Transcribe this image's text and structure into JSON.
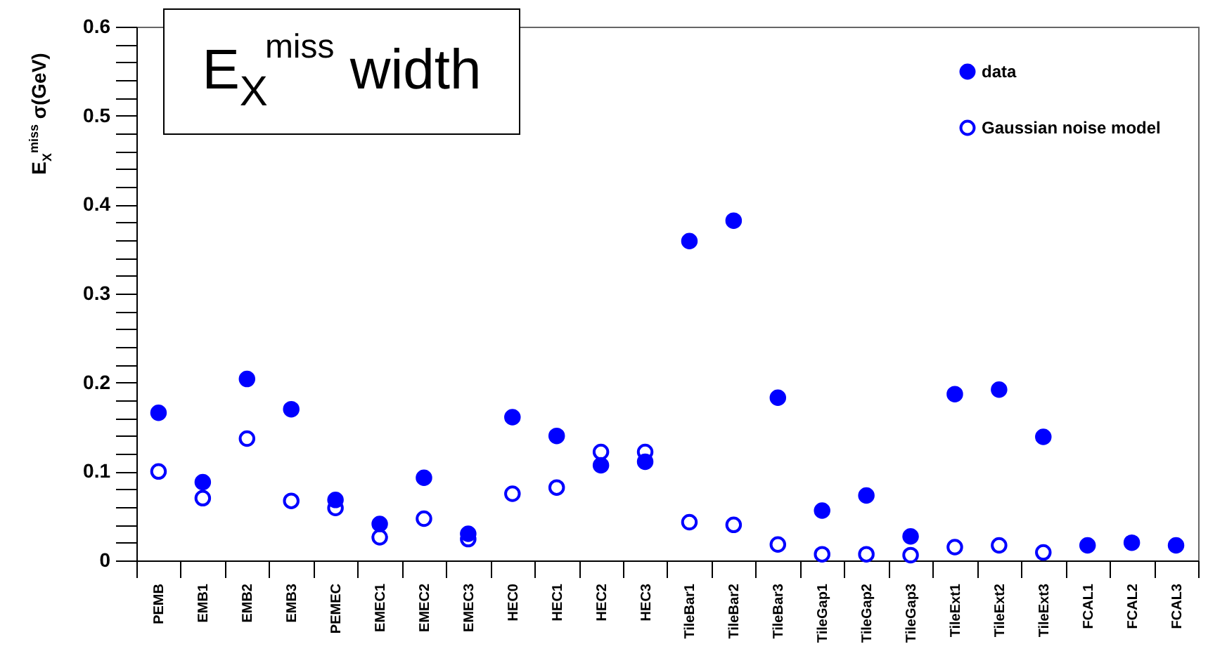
{
  "chart_data": {
    "type": "scatter",
    "title": "E$_{X}$$^{miss}$ width",
    "ylabel": "E$_{X}$$^{miss}$ σ(GeV)",
    "categories": [
      "PEMB",
      "EMB1",
      "EMB2",
      "EMB3",
      "PEMEC",
      "EMEC1",
      "EMEC2",
      "EMEC3",
      "HEC0",
      "HEC1",
      "HEC2",
      "HEC3",
      "TileBar1",
      "TileBar2",
      "TileBar3",
      "TileGap1",
      "TileGap2",
      "TileGap3",
      "TileExt1",
      "TileExt2",
      "TileExt3",
      "FCAL1",
      "FCAL2",
      "FCAL3"
    ],
    "series": [
      {
        "name": "data",
        "color": "#0000ff",
        "values": [
          0.166,
          0.088,
          0.204,
          0.17,
          0.068,
          0.041,
          0.093,
          0.03,
          0.161,
          0.14,
          0.107,
          0.111,
          0.359,
          0.382,
          0.183,
          0.056,
          0.073,
          0.027,
          0.187,
          0.192,
          0.139,
          0.017,
          0.02,
          0.017
        ]
      },
      {
        "name": "Gaussian noise model",
        "color": "#0000ff",
        "values": [
          0.1,
          0.07,
          0.137,
          0.067,
          0.059,
          0.026,
          0.047,
          0.024,
          0.075,
          0.082,
          0.122,
          0.122,
          0.043,
          0.04,
          0.018,
          0.007,
          0.007,
          0.006,
          0.015,
          0.017,
          0.009,
          null,
          null,
          null
        ]
      }
    ],
    "ylim": [
      0,
      0.6
    ],
    "yticks": [
      0,
      {
        "value": 0.02,
        "label": null
      },
      {
        "value": 0.04,
        "label": null
      },
      {
        "value": 0.06,
        "label": null
      },
      {
        "value": 0.08,
        "label": null
      },
      0.1,
      {
        "value": 0.12,
        "label": null
      },
      {
        "value": 0.14,
        "label": null
      },
      {
        "value": 0.16,
        "label": null
      },
      {
        "value": 0.18,
        "label": null
      },
      0.2,
      {
        "value": 0.22,
        "label": null
      },
      {
        "value": 0.24,
        "label": null
      },
      {
        "value": 0.26,
        "label": null
      },
      {
        "value": 0.28,
        "label": null
      },
      0.3,
      {
        "value": 0.32,
        "label": null
      },
      {
        "value": 0.34,
        "label": null
      },
      {
        "value": 0.36,
        "label": null
      },
      {
        "value": 0.38,
        "label": null
      },
      0.4,
      {
        "value": 0.42,
        "label": null
      },
      {
        "value": 0.44,
        "label": null
      },
      {
        "value": 0.46,
        "label": null
      },
      {
        "value": 0.48,
        "label": null
      },
      0.5,
      {
        "value": 0.52,
        "label": null
      },
      {
        "value": 0.54,
        "label": null
      },
      {
        "value": 0.56,
        "label": null
      },
      {
        "value": 0.58,
        "label": null
      },
      0.6
    ],
    "marker": "circle",
    "legend": "top right",
    "grid": false
  }
}
